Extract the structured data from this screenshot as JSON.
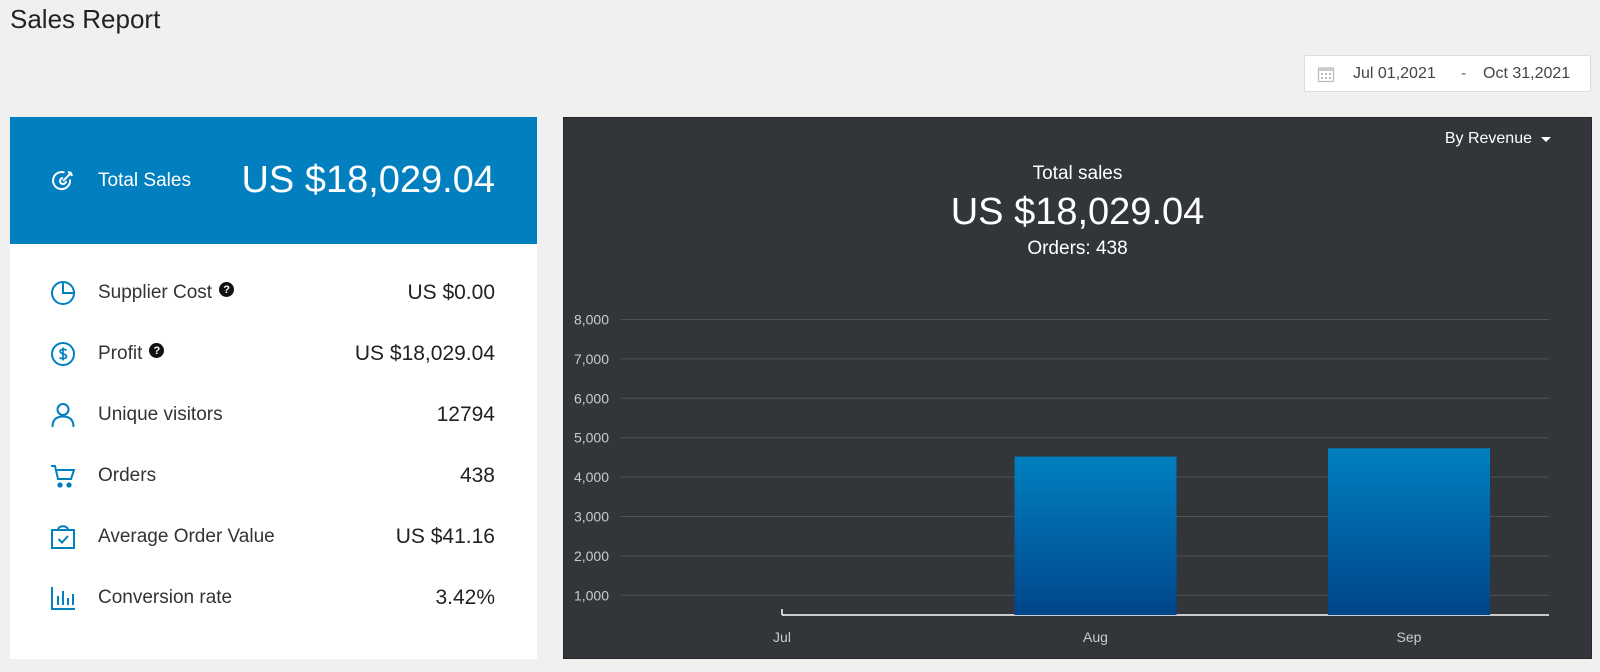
{
  "page": {
    "title": "Sales Report"
  },
  "date_range": {
    "start": "Jul 01,2021",
    "separator": "-",
    "end": "Oct 31,2021"
  },
  "summary": {
    "header": {
      "icon": "target-icon",
      "label": "Total Sales",
      "value": "US $18,029.04"
    },
    "metrics": [
      {
        "name": "supplier-cost",
        "icon": "pie-chart-icon",
        "label": "Supplier Cost",
        "help": true,
        "value": "US $0.00"
      },
      {
        "name": "profit",
        "icon": "dollar-circle-icon",
        "label": "Profit",
        "help": true,
        "value": "US $18,029.04"
      },
      {
        "name": "unique-visitors",
        "icon": "user-icon",
        "label": "Unique visitors",
        "help": false,
        "value": "12794"
      },
      {
        "name": "orders",
        "icon": "cart-icon",
        "label": "Orders",
        "help": false,
        "value": "438"
      },
      {
        "name": "average-order-value",
        "icon": "shopping-bag-check-icon",
        "label": "Average Order Value",
        "help": false,
        "value": "US $41.16"
      },
      {
        "name": "conversion-rate",
        "icon": "bar-chart-icon",
        "label": "Conversion rate",
        "help": false,
        "value": "3.42%"
      }
    ],
    "help_glyph": "?"
  },
  "chart_panel": {
    "sort_label": "By Revenue",
    "heading": "Total sales",
    "total": "US $18,029.04",
    "orders": "Orders: 438"
  },
  "colors": {
    "accent": "#017fbe",
    "panel_dark": "#32353a",
    "bar_top": "#0080c0",
    "bar_bottom": "#00458a"
  },
  "chart_data": {
    "type": "bar",
    "categories": [
      "Jul",
      "Aug",
      "Sep"
    ],
    "values": [
      0,
      4520,
      4730
    ],
    "title": "",
    "xlabel": "",
    "ylabel": "",
    "ylim": [
      500,
      8000
    ],
    "yticks": [
      1000,
      2000,
      3000,
      4000,
      5000,
      6000,
      7000,
      8000
    ],
    "ytick_labels": [
      "1,000",
      "2,000",
      "3,000",
      "4,000",
      "5,000",
      "6,000",
      "7,000",
      "8,000"
    ],
    "grid": true,
    "legend": "none"
  }
}
